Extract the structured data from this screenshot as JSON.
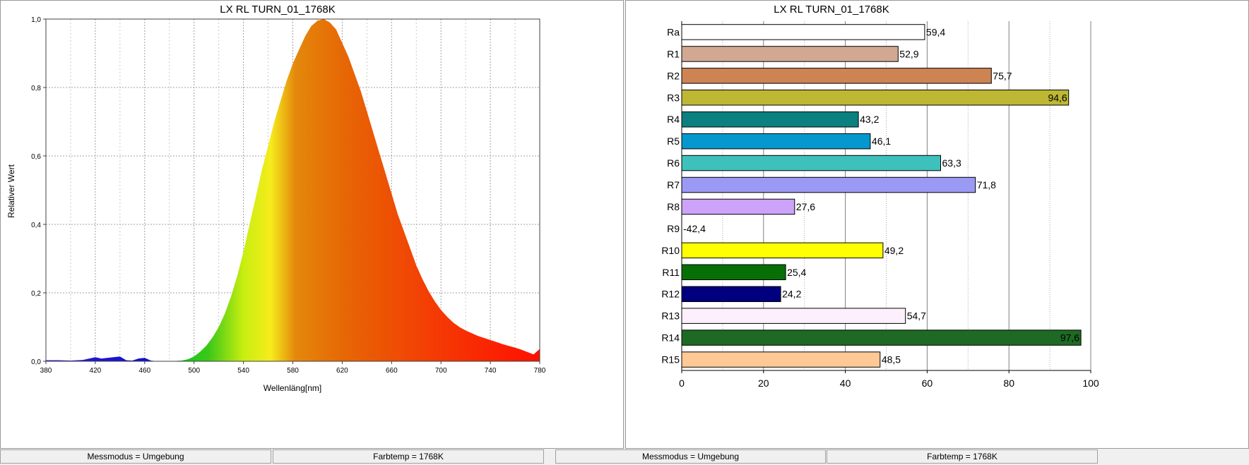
{
  "spectrum": {
    "chart_data": {
      "type": "area",
      "title": "LX RL TURN_01_1768K",
      "xlabel": "Wellenläng[nm]",
      "ylabel": "Relativer Wert",
      "xlim": [
        380,
        780
      ],
      "ylim": [
        0,
        1.0
      ],
      "x_ticks": [
        "380",
        "420",
        "460",
        "500",
        "540",
        "580",
        "620",
        "660",
        "700",
        "740",
        "780"
      ],
      "y_ticks": [
        "0,0",
        "0,2",
        "0,4",
        "0,6",
        "0,8",
        "1,0"
      ],
      "grid": true,
      "series": [
        {
          "x": [
            380,
            390,
            400,
            410,
            420,
            425,
            430,
            440,
            445,
            450,
            455,
            460,
            465,
            470,
            480,
            490,
            495,
            500,
            505,
            510,
            515,
            520,
            525,
            530,
            535,
            540,
            545,
            550,
            555,
            560,
            565,
            570,
            575,
            580,
            585,
            590,
            595,
            600,
            605,
            610,
            615,
            620,
            625,
            630,
            635,
            640,
            645,
            650,
            655,
            660,
            665,
            670,
            675,
            680,
            685,
            690,
            695,
            700,
            705,
            710,
            715,
            720,
            725,
            730,
            735,
            740,
            745,
            750,
            755,
            760,
            765,
            770,
            775,
            780
          ],
          "y": [
            0.003,
            0.003,
            0.002,
            0.004,
            0.012,
            0.008,
            0.01,
            0.014,
            0.003,
            0.002,
            0.008,
            0.01,
            0.002,
            0.0,
            0.0,
            0.002,
            0.006,
            0.014,
            0.028,
            0.046,
            0.07,
            0.1,
            0.14,
            0.19,
            0.25,
            0.32,
            0.4,
            0.48,
            0.56,
            0.63,
            0.7,
            0.76,
            0.82,
            0.87,
            0.91,
            0.95,
            0.98,
            0.995,
            1.0,
            0.99,
            0.97,
            0.93,
            0.89,
            0.84,
            0.79,
            0.73,
            0.67,
            0.61,
            0.55,
            0.49,
            0.43,
            0.38,
            0.33,
            0.28,
            0.24,
            0.205,
            0.175,
            0.15,
            0.13,
            0.113,
            0.1,
            0.09,
            0.082,
            0.074,
            0.068,
            0.062,
            0.056,
            0.05,
            0.045,
            0.04,
            0.034,
            0.027,
            0.02,
            0.036
          ]
        }
      ]
    }
  },
  "cri": {
    "chart_data": {
      "type": "bar",
      "orientation": "horizontal",
      "title": "LX RL TURN_01_1768K",
      "xlim": [
        0,
        100
      ],
      "x_ticks": [
        "0",
        "20",
        "40",
        "60",
        "80",
        "100"
      ],
      "grid": true,
      "categories": [
        "Ra",
        "R1",
        "R2",
        "R3",
        "R4",
        "R5",
        "R6",
        "R7",
        "R8",
        "R9",
        "R10",
        "R11",
        "R12",
        "R13",
        "R14",
        "R15"
      ],
      "values": [
        59.4,
        52.9,
        75.7,
        94.6,
        43.2,
        46.1,
        63.3,
        71.8,
        27.6,
        -42.4,
        49.2,
        25.4,
        24.2,
        54.7,
        97.6,
        48.5
      ],
      "value_labels": [
        "59,4",
        "52,9",
        "75,7",
        "94,6",
        "43,2",
        "46,1",
        "63,3",
        "71,8",
        "27,6",
        "-42,4",
        "49,2",
        "25,4",
        "24,2",
        "54,7",
        "97,6",
        "48,5"
      ],
      "colors": [
        "#ffffff",
        "#d2a893",
        "#cd8352",
        "#bdb733",
        "#0a8080",
        "#0797cf",
        "#3ec1bc",
        "#9a9af4",
        "#cca3f8",
        "#ff0000",
        "#ffff00",
        "#067006",
        "#00007e",
        "#fdf0fd",
        "#1e6a24",
        "#ffc995"
      ]
    }
  },
  "status": {
    "left_mode": "Messmodus = Umgebung",
    "left_temp": "Farbtemp = 1768K",
    "right_mode": "Messmodus = Umgebung",
    "right_temp": "Farbtemp = 1768K"
  }
}
